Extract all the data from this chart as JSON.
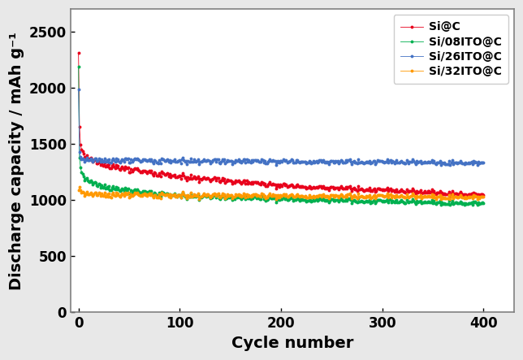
{
  "title": "",
  "xlabel": "Cycle number",
  "ylabel": "Discharge capacity / mAh g⁻¹",
  "xlim": [
    -8,
    430
  ],
  "ylim": [
    0,
    2700
  ],
  "yticks": [
    0,
    500,
    1000,
    1500,
    2000,
    2500
  ],
  "xticks": [
    0,
    100,
    200,
    300,
    400
  ],
  "series": [
    {
      "label": "Si@C",
      "color": "#e8001c",
      "key_points": [
        [
          0,
          2320
        ],
        [
          1,
          1650
        ],
        [
          2,
          1500
        ],
        [
          3,
          1460
        ],
        [
          4,
          1430
        ],
        [
          5,
          1410
        ],
        [
          7,
          1390
        ],
        [
          10,
          1370
        ],
        [
          20,
          1330
        ],
        [
          50,
          1270
        ],
        [
          100,
          1210
        ],
        [
          200,
          1130
        ],
        [
          300,
          1090
        ],
        [
          400,
          1050
        ]
      ]
    },
    {
      "label": "Si/08ITO@C",
      "color": "#00b050",
      "key_points": [
        [
          0,
          2200
        ],
        [
          1,
          1370
        ],
        [
          2,
          1300
        ],
        [
          3,
          1260
        ],
        [
          4,
          1230
        ],
        [
          5,
          1210
        ],
        [
          7,
          1190
        ],
        [
          10,
          1170
        ],
        [
          20,
          1130
        ],
        [
          50,
          1080
        ],
        [
          100,
          1040
        ],
        [
          200,
          1010
        ],
        [
          300,
          990
        ],
        [
          400,
          975
        ]
      ]
    },
    {
      "label": "Si/26ITO@C",
      "color": "#4472c4",
      "key_points": [
        [
          0,
          2000
        ],
        [
          1,
          1420
        ],
        [
          2,
          1390
        ],
        [
          3,
          1375
        ],
        [
          4,
          1370
        ],
        [
          5,
          1365
        ],
        [
          7,
          1360
        ],
        [
          10,
          1358
        ],
        [
          20,
          1355
        ],
        [
          50,
          1352
        ],
        [
          100,
          1348
        ],
        [
          200,
          1345
        ],
        [
          300,
          1340
        ],
        [
          400,
          1335
        ]
      ]
    },
    {
      "label": "Si/32ITO@C",
      "color": "#ff9900",
      "key_points": [
        [
          0,
          1100
        ],
        [
          1,
          1110
        ],
        [
          2,
          1095
        ],
        [
          3,
          1080
        ],
        [
          4,
          1070
        ],
        [
          5,
          1065
        ],
        [
          7,
          1058
        ],
        [
          10,
          1055
        ],
        [
          20,
          1050
        ],
        [
          50,
          1045
        ],
        [
          100,
          1042
        ],
        [
          200,
          1038
        ],
        [
          300,
          1035
        ],
        [
          400,
          1030
        ]
      ]
    }
  ],
  "outer_bg_color": "#e8e8e8",
  "plot_bg_color": "#ffffff",
  "marker": "o",
  "markersize": 2.8,
  "linewidth": 0.6,
  "legend_loc": "upper right",
  "xlabel_fontsize": 14,
  "ylabel_fontsize": 14,
  "tick_fontsize": 12,
  "legend_fontsize": 10
}
